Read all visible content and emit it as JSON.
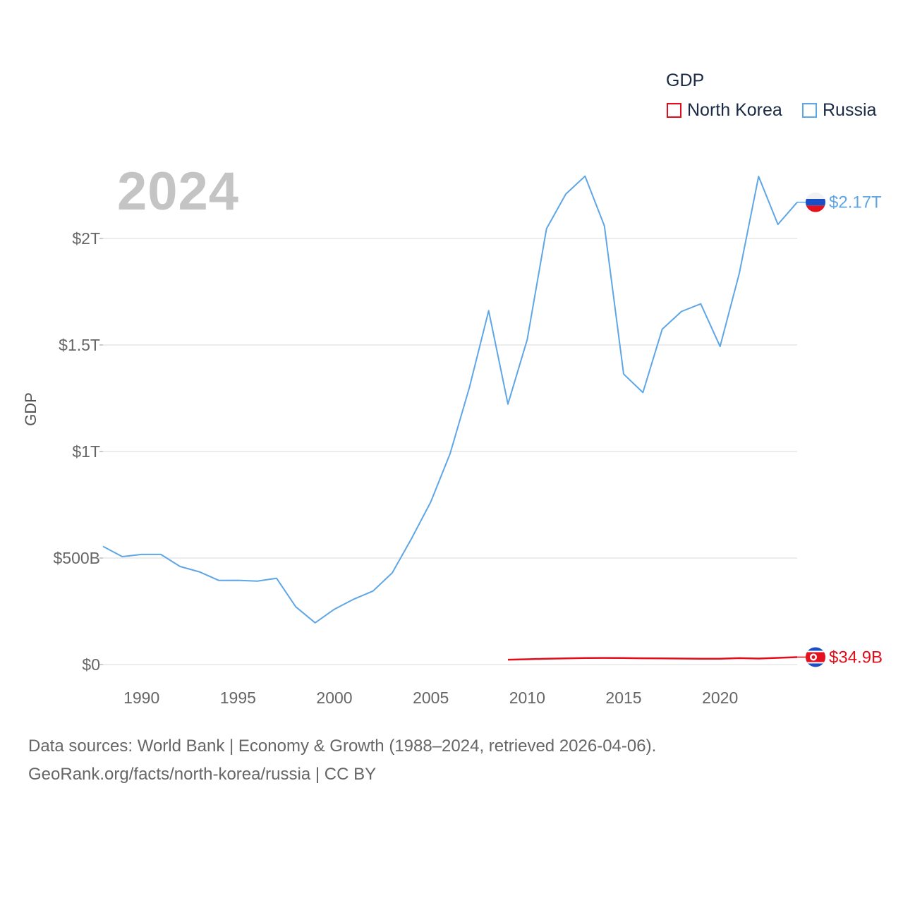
{
  "watermark_year": "2024",
  "legend": {
    "title": "GDP",
    "items": [
      {
        "label": "North Korea",
        "color": "#e30c1a"
      },
      {
        "label": "Russia",
        "color": "#5fa6e6"
      }
    ]
  },
  "footer": {
    "line1": "Data sources: World Bank | Economy & Growth (1988–2024, retrieved 2026-04-06).",
    "line2": "GeoRank.org/facts/north-korea/russia | CC BY"
  },
  "chart_data": {
    "type": "line",
    "title": "",
    "xlabel": "",
    "ylabel": "GDP",
    "xlim": [
      1988,
      2024
    ],
    "ylim": [
      0,
      2000000000000
    ],
    "x_ticks": [
      1990,
      1995,
      2000,
      2005,
      2010,
      2015,
      2020
    ],
    "y_ticks": [
      {
        "value": 0,
        "label": "$0"
      },
      {
        "value": 500000000000,
        "label": "$500B"
      },
      {
        "value": 1000000000000,
        "label": "$1T"
      },
      {
        "value": 1500000000000,
        "label": "$1.5T"
      },
      {
        "value": 2000000000000,
        "label": "$2T"
      }
    ],
    "grid": true,
    "series": [
      {
        "name": "Russia",
        "color": "#5fa6e6",
        "end_label": "$2.17T",
        "flag": "russia-flag",
        "points": [
          [
            1988,
            554700000000
          ],
          [
            1989,
            506500000000
          ],
          [
            1990,
            516800000000
          ],
          [
            1991,
            517000000000
          ],
          [
            1992,
            460300000000
          ],
          [
            1993,
            435100000000
          ],
          [
            1994,
            395100000000
          ],
          [
            1995,
            395500000000
          ],
          [
            1996,
            391700000000
          ],
          [
            1997,
            404900000000
          ],
          [
            1998,
            271000000000
          ],
          [
            1999,
            195900000000
          ],
          [
            2000,
            259700000000
          ],
          [
            2001,
            306600000000
          ],
          [
            2002,
            345100000000
          ],
          [
            2003,
            430300000000
          ],
          [
            2004,
            591000000000
          ],
          [
            2005,
            764000000000
          ],
          [
            2006,
            989900000000
          ],
          [
            2007,
            1299700000000
          ],
          [
            2008,
            1660800000000
          ],
          [
            2009,
            1222600000000
          ],
          [
            2010,
            1524900000000
          ],
          [
            2011,
            2045900000000
          ],
          [
            2012,
            2208300000000
          ],
          [
            2013,
            2292500000000
          ],
          [
            2014,
            2059200000000
          ],
          [
            2015,
            1363500000000
          ],
          [
            2016,
            1276800000000
          ],
          [
            2017,
            1574200000000
          ],
          [
            2018,
            1657300000000
          ],
          [
            2019,
            1693100000000
          ],
          [
            2020,
            1493100000000
          ],
          [
            2021,
            1836900000000
          ],
          [
            2022,
            2291000000000
          ],
          [
            2023,
            2066000000000
          ],
          [
            2024,
            2170000000000
          ]
        ]
      },
      {
        "name": "North Korea",
        "color": "#e30c1a",
        "end_label": "$34.9B",
        "flag": "north-korea-flag",
        "points": [
          [
            2009,
            22700000000
          ],
          [
            2010,
            25000000000
          ],
          [
            2011,
            27600000000
          ],
          [
            2012,
            29000000000
          ],
          [
            2013,
            30500000000
          ],
          [
            2014,
            31000000000
          ],
          [
            2015,
            30500000000
          ],
          [
            2016,
            29500000000
          ],
          [
            2017,
            29000000000
          ],
          [
            2018,
            28000000000
          ],
          [
            2019,
            27500000000
          ],
          [
            2020,
            27000000000
          ],
          [
            2021,
            30000000000
          ],
          [
            2022,
            28000000000
          ],
          [
            2023,
            31500000000
          ],
          [
            2024,
            34900000000
          ]
        ]
      }
    ]
  }
}
